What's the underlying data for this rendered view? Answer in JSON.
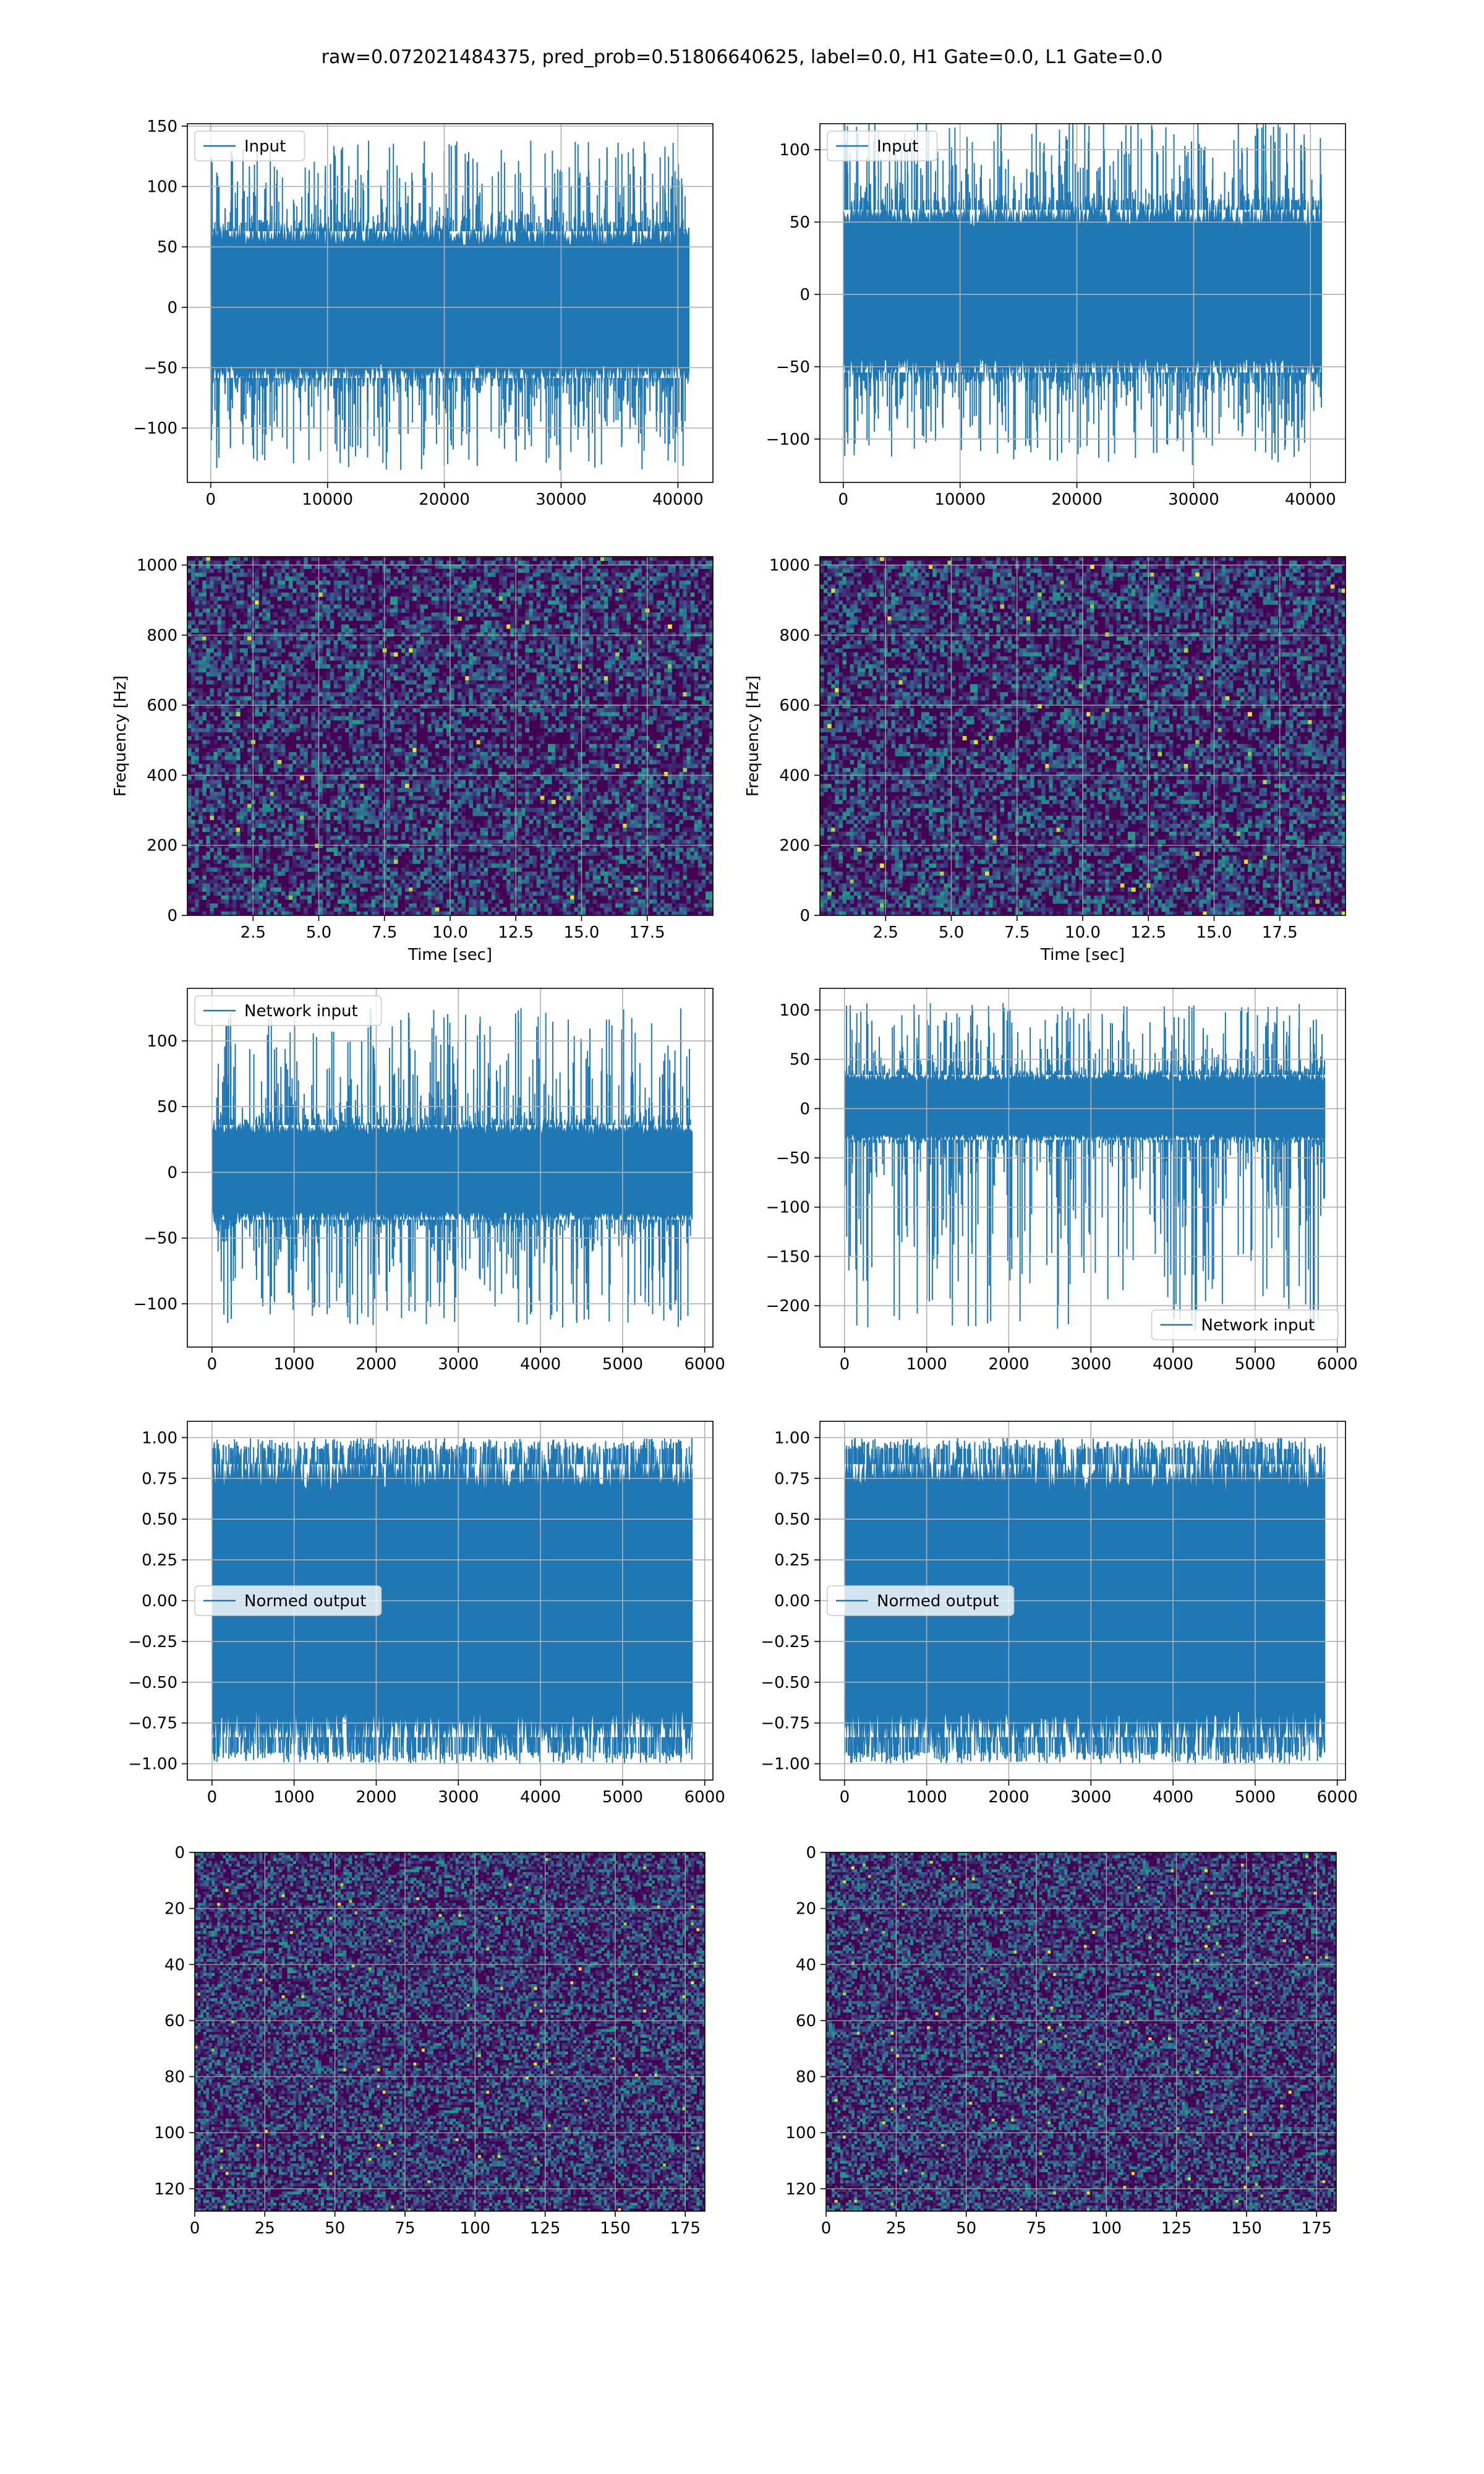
{
  "figure": {
    "suptitle": "raw=0.072021484375, pred_prob=0.51806640625, label=0.0, H1 Gate=0.0, L1 Gate=0.0",
    "colors": {
      "line": "#1f77b4",
      "grid": "#b0b0b0",
      "heat_low": "#440154",
      "heat_mid": "#21918c",
      "heat_high": "#fde725"
    }
  },
  "chart_data": [
    {
      "id": "input-h1",
      "type": "line",
      "row": 0,
      "col": 0,
      "legend": {
        "label": "Input",
        "loc": "upper-left"
      },
      "xlim": [
        -2000,
        43000
      ],
      "ylim": [
        -145,
        152
      ],
      "xticks": [
        0,
        10000,
        20000,
        30000,
        40000
      ],
      "yticks": [
        -100,
        -50,
        0,
        50,
        100,
        150
      ],
      "series": [
        {
          "name": "Input",
          "x_range": [
            0,
            40960
          ],
          "band": [
            -65,
            70
          ],
          "max": 138,
          "min": -135
        }
      ],
      "grid": true
    },
    {
      "id": "input-l1",
      "type": "line",
      "row": 0,
      "col": 1,
      "legend": {
        "label": "Input",
        "loc": "upper-left"
      },
      "xlim": [
        -2000,
        43000
      ],
      "ylim": [
        -130,
        118
      ],
      "xticks": [
        0,
        10000,
        20000,
        30000,
        40000
      ],
      "yticks": [
        -100,
        -50,
        0,
        50,
        100
      ],
      "series": [
        {
          "name": "Input",
          "x_range": [
            0,
            40960
          ],
          "band": [
            -60,
            65
          ],
          "max": 124,
          "min": -118
        }
      ],
      "grid": true
    },
    {
      "id": "spectrogram-h1",
      "type": "heatmap",
      "row": 1,
      "col": 0,
      "xlabel": "Time [sec]",
      "ylabel": "Frequency [Hz]",
      "xlim": [
        0,
        20
      ],
      "ylim": [
        0,
        1024
      ],
      "xticks": [
        2.5,
        5.0,
        7.5,
        10.0,
        12.5,
        15.0,
        17.5
      ],
      "yticks": [
        0,
        200,
        400,
        600,
        800,
        1000
      ],
      "grid": true
    },
    {
      "id": "spectrogram-l1",
      "type": "heatmap",
      "row": 1,
      "col": 1,
      "xlabel": "Time [sec]",
      "ylabel": "Frequency [Hz]",
      "xlim": [
        0,
        20
      ],
      "ylim": [
        0,
        1024
      ],
      "xticks": [
        2.5,
        5.0,
        7.5,
        10.0,
        12.5,
        15.0,
        17.5
      ],
      "yticks": [
        0,
        200,
        400,
        600,
        800,
        1000
      ],
      "grid": true
    },
    {
      "id": "network-input-h1",
      "type": "line",
      "row": 2,
      "col": 0,
      "legend": {
        "label": "Network input",
        "loc": "upper-left"
      },
      "xlim": [
        -300,
        6100
      ],
      "ylim": [
        -133,
        140
      ],
      "xticks": [
        0,
        1000,
        2000,
        3000,
        4000,
        5000,
        6000
      ],
      "yticks": [
        -100,
        -50,
        0,
        50,
        100
      ],
      "series": [
        {
          "name": "Network input",
          "x_range": [
            0,
            5850
          ],
          "band": [
            -40,
            40
          ],
          "max": 125,
          "min": -118
        }
      ],
      "grid": true
    },
    {
      "id": "network-input-l1",
      "type": "line",
      "row": 2,
      "col": 1,
      "legend": {
        "label": "Network input",
        "loc": "lower-right"
      },
      "xlim": [
        -300,
        6100
      ],
      "ylim": [
        -242,
        122
      ],
      "xticks": [
        0,
        1000,
        2000,
        3000,
        4000,
        5000,
        6000
      ],
      "yticks": [
        -200,
        -150,
        -100,
        -50,
        0,
        50,
        100
      ],
      "series": [
        {
          "name": "Network input",
          "x_range": [
            0,
            5850
          ],
          "band": [
            -35,
            38
          ],
          "max": 107,
          "min": -225
        }
      ],
      "grid": true
    },
    {
      "id": "normed-output-h1",
      "type": "line",
      "row": 3,
      "col": 0,
      "legend": {
        "label": "Normed output",
        "loc": "center-left"
      },
      "xlim": [
        -300,
        6100
      ],
      "ylim": [
        -1.1,
        1.1
      ],
      "xticks": [
        0,
        1000,
        2000,
        3000,
        4000,
        5000,
        6000
      ],
      "yticks": [
        -1.0,
        -0.75,
        -0.5,
        -0.25,
        0.0,
        0.25,
        0.5,
        0.75,
        1.0
      ],
      "series": [
        {
          "name": "Normed output",
          "x_range": [
            0,
            5850
          ],
          "band": [
            -0.93,
            0.93
          ],
          "max": 1.0,
          "min": -1.0
        }
      ],
      "grid": true
    },
    {
      "id": "normed-output-l1",
      "type": "line",
      "row": 3,
      "col": 1,
      "legend": {
        "label": "Normed output",
        "loc": "center-left"
      },
      "xlim": [
        -300,
        6100
      ],
      "ylim": [
        -1.1,
        1.1
      ],
      "xticks": [
        0,
        1000,
        2000,
        3000,
        4000,
        5000,
        6000
      ],
      "yticks": [
        -1.0,
        -0.75,
        -0.5,
        -0.25,
        0.0,
        0.25,
        0.5,
        0.75,
        1.0
      ],
      "series": [
        {
          "name": "Normed output",
          "x_range": [
            0,
            5850
          ],
          "band": [
            -0.93,
            0.93
          ],
          "max": 1.0,
          "min": -1.0
        }
      ],
      "grid": true
    },
    {
      "id": "image-h1",
      "type": "heatmap",
      "row": 4,
      "col": 0,
      "xlim": [
        0,
        182
      ],
      "ylim": [
        128,
        0
      ],
      "xticks": [
        0,
        25,
        50,
        75,
        100,
        125,
        150,
        175
      ],
      "yticks": [
        0,
        20,
        40,
        60,
        80,
        100,
        120
      ],
      "grid": true
    },
    {
      "id": "image-l1",
      "type": "heatmap",
      "row": 4,
      "col": 1,
      "xlim": [
        0,
        182
      ],
      "ylim": [
        128,
        0
      ],
      "xticks": [
        0,
        25,
        50,
        75,
        100,
        125,
        150,
        175
      ],
      "yticks": [
        0,
        20,
        40,
        60,
        80,
        100,
        120
      ],
      "grid": true
    }
  ]
}
